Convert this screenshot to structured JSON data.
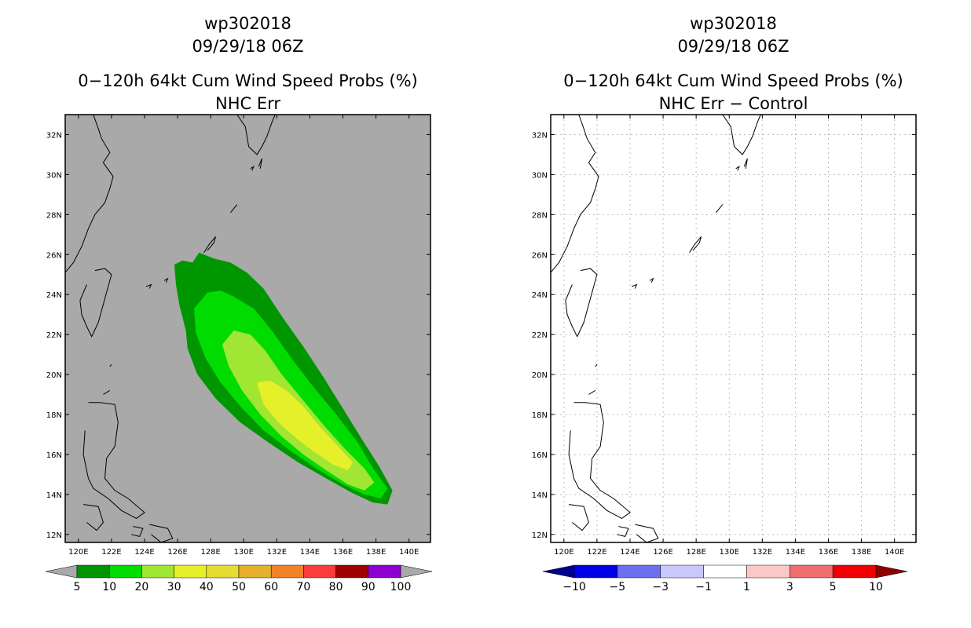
{
  "chart_data": [
    {
      "type": "contour-map",
      "storm_id": "wp302018",
      "datetime": "09/29/18 06Z",
      "title": "0−120h 64kt Cum Wind Speed Probs (%)",
      "subtitle": "NHC Err",
      "xlim": [
        119.2,
        141.3
      ],
      "ylim": [
        11.6,
        33.0
      ],
      "x_ticks": [
        120,
        122,
        124,
        126,
        128,
        130,
        132,
        134,
        136,
        138,
        140
      ],
      "y_ticks": [
        12,
        14,
        16,
        18,
        20,
        22,
        24,
        26,
        28,
        30,
        32
      ],
      "x_tick_labels": [
        "120E",
        "122E",
        "124E",
        "126E",
        "128E",
        "130E",
        "132E",
        "134E",
        "136E",
        "138E",
        "140E"
      ],
      "y_tick_labels": [
        "12N",
        "14N",
        "16N",
        "18N",
        "20N",
        "22N",
        "24N",
        "26N",
        "28N",
        "30N",
        "32N"
      ],
      "grid": false,
      "background": "#a9a9a9",
      "colorbar": {
        "labels": [
          "5",
          "10",
          "20",
          "30",
          "40",
          "50",
          "60",
          "70",
          "80",
          "90",
          "100"
        ],
        "colors": [
          "#009600",
          "#00dc00",
          "#a0e632",
          "#e6f028",
          "#e6dc32",
          "#e6af2d",
          "#f08228",
          "#fa3c3c",
          "#a00000",
          "#8c00d2"
        ],
        "end_color": "#a9a9a9"
      },
      "contours": [
        {
          "level": 5,
          "color": "#009600",
          "polygon": [
            [
              125.8,
              25.5
            ],
            [
              126.3,
              25.7
            ],
            [
              126.9,
              25.6
            ],
            [
              127.3,
              26.1
            ],
            [
              128.2,
              25.8
            ],
            [
              129.2,
              25.6
            ],
            [
              130.2,
              25.1
            ],
            [
              131.2,
              24.3
            ],
            [
              132.4,
              22.8
            ],
            [
              133.6,
              21.4
            ],
            [
              134.8,
              19.9
            ],
            [
              136.0,
              18.3
            ],
            [
              137.2,
              16.7
            ],
            [
              138.2,
              15.4
            ],
            [
              139.0,
              14.2
            ],
            [
              138.7,
              13.5
            ],
            [
              137.8,
              13.6
            ],
            [
              136.5,
              14.1
            ],
            [
              135.0,
              14.8
            ],
            [
              133.3,
              15.6
            ],
            [
              131.5,
              16.6
            ],
            [
              129.8,
              17.6
            ],
            [
              128.3,
              18.8
            ],
            [
              127.2,
              20.0
            ],
            [
              126.6,
              21.3
            ],
            [
              126.5,
              22.2
            ],
            [
              126.1,
              23.5
            ],
            [
              125.9,
              24.5
            ]
          ]
        },
        {
          "level": 10,
          "color": "#00dc00",
          "polygon": [
            [
              127.0,
              23.3
            ],
            [
              127.8,
              24.1
            ],
            [
              128.6,
              24.2
            ],
            [
              129.4,
              23.9
            ],
            [
              130.6,
              23.3
            ],
            [
              131.7,
              22.2
            ],
            [
              132.9,
              20.8
            ],
            [
              134.2,
              19.4
            ],
            [
              135.6,
              18.0
            ],
            [
              136.9,
              16.6
            ],
            [
              137.9,
              15.2
            ],
            [
              138.7,
              14.3
            ],
            [
              138.3,
              13.8
            ],
            [
              137.3,
              14.0
            ],
            [
              136.0,
              14.5
            ],
            [
              134.4,
              15.3
            ],
            [
              132.8,
              16.2
            ],
            [
              131.2,
              17.2
            ],
            [
              129.8,
              18.4
            ],
            [
              128.6,
              19.6
            ],
            [
              127.7,
              20.8
            ],
            [
              127.1,
              22.1
            ]
          ]
        },
        {
          "level": 20,
          "color": "#a0e632",
          "polygon": [
            [
              128.7,
              21.5
            ],
            [
              129.4,
              22.2
            ],
            [
              130.4,
              22.0
            ],
            [
              131.3,
              21.2
            ],
            [
              132.3,
              20.0
            ],
            [
              133.5,
              18.8
            ],
            [
              134.8,
              17.5
            ],
            [
              136.1,
              16.3
            ],
            [
              137.3,
              15.3
            ],
            [
              137.9,
              14.6
            ],
            [
              137.3,
              14.2
            ],
            [
              136.3,
              14.5
            ],
            [
              135.0,
              15.2
            ],
            [
              133.6,
              16.0
            ],
            [
              132.3,
              16.9
            ],
            [
              131.0,
              18.0
            ],
            [
              129.9,
              19.2
            ],
            [
              129.1,
              20.4
            ]
          ]
        },
        {
          "level": 30,
          "color": "#e6f028",
          "polygon": [
            [
              130.8,
              19.6
            ],
            [
              131.6,
              19.7
            ],
            [
              132.6,
              19.2
            ],
            [
              133.6,
              18.4
            ],
            [
              134.6,
              17.4
            ],
            [
              135.6,
              16.5
            ],
            [
              136.6,
              15.6
            ],
            [
              136.3,
              15.2
            ],
            [
              135.4,
              15.5
            ],
            [
              134.3,
              16.1
            ],
            [
              133.2,
              16.8
            ],
            [
              132.1,
              17.6
            ],
            [
              131.2,
              18.5
            ]
          ]
        }
      ]
    },
    {
      "type": "contour-map",
      "storm_id": "wp302018",
      "datetime": "09/29/18 06Z",
      "title": "0−120h 64kt Cum Wind Speed Probs (%)",
      "subtitle": "NHC Err − Control",
      "xlim": [
        119.2,
        141.3
      ],
      "ylim": [
        11.6,
        33.0
      ],
      "x_ticks": [
        120,
        122,
        124,
        126,
        128,
        130,
        132,
        134,
        136,
        138,
        140
      ],
      "y_ticks": [
        12,
        14,
        16,
        18,
        20,
        22,
        24,
        26,
        28,
        30,
        32
      ],
      "x_tick_labels": [
        "120E",
        "122E",
        "124E",
        "126E",
        "128E",
        "130E",
        "132E",
        "134E",
        "136E",
        "138E",
        "140E"
      ],
      "y_tick_labels": [
        "12N",
        "14N",
        "16N",
        "18N",
        "20N",
        "22N",
        "24N",
        "26N",
        "28N",
        "30N",
        "32N"
      ],
      "grid": true,
      "background": "#ffffff",
      "colorbar": {
        "labels": [
          "−10",
          "−5",
          "−3",
          "−1",
          "1",
          "3",
          "5",
          "10"
        ],
        "colors": [
          "#0000e6",
          "#6e6ef0",
          "#c8c8fa",
          "#ffffff",
          "#fac8c8",
          "#f06e6e",
          "#f00000"
        ],
        "low_color": "#00008c",
        "high_color": "#8c0000"
      },
      "contours": []
    }
  ]
}
